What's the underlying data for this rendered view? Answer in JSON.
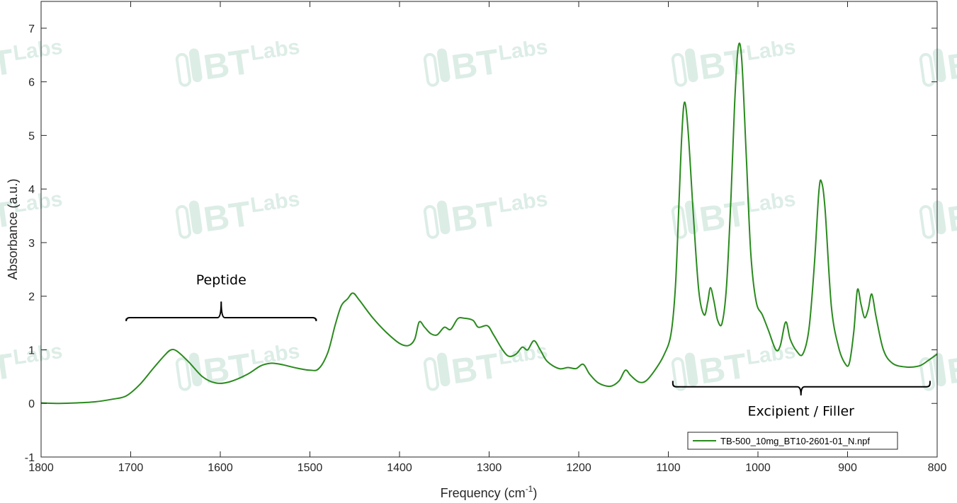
{
  "colors": {
    "series": "#2a8a1e",
    "axis": "#262626",
    "watermark": "#d7ebe2"
  },
  "watermark": {
    "text_bt": "BT",
    "text_labs": "Labs"
  },
  "chart_data": {
    "type": "line",
    "title": "",
    "xlabel": "Frequency (cm",
    "xlabel_sup": "-1",
    "xlabel_end": ")",
    "ylabel": "Absorbance (a.u.)",
    "xlim": [
      1800,
      800
    ],
    "ylim": [
      -1,
      7.5
    ],
    "x_reversed": true,
    "grid": false,
    "legend_position": "bottom-right",
    "xticks": [
      1800,
      1700,
      1600,
      1500,
      1400,
      1300,
      1200,
      1100,
      1000,
      900,
      800
    ],
    "xtick_labels": [
      "1800",
      "1700",
      "1600",
      "1500",
      "1400",
      "1300",
      "1200",
      "1100",
      "1000",
      "900",
      "800"
    ],
    "yticks": [
      -1,
      0,
      1,
      2,
      3,
      4,
      5,
      6,
      7
    ],
    "ytick_labels": [
      "-1",
      "0",
      "1",
      "2",
      "3",
      "4",
      "5",
      "6",
      "7"
    ],
    "series": [
      {
        "name": "TB-500_10mg_BT10-2601-01_N.npf",
        "points": [
          [
            1800,
            0.01
          ],
          [
            1780,
            0.0
          ],
          [
            1760,
            0.01
          ],
          [
            1740,
            0.03
          ],
          [
            1720,
            0.08
          ],
          [
            1705,
            0.14
          ],
          [
            1690,
            0.35
          ],
          [
            1675,
            0.65
          ],
          [
            1662,
            0.9
          ],
          [
            1655,
            1.0
          ],
          [
            1648,
            0.97
          ],
          [
            1635,
            0.77
          ],
          [
            1620,
            0.5
          ],
          [
            1605,
            0.38
          ],
          [
            1590,
            0.4
          ],
          [
            1570,
            0.54
          ],
          [
            1555,
            0.7
          ],
          [
            1543,
            0.75
          ],
          [
            1530,
            0.72
          ],
          [
            1515,
            0.66
          ],
          [
            1500,
            0.62
          ],
          [
            1490,
            0.65
          ],
          [
            1480,
            0.95
          ],
          [
            1472,
            1.45
          ],
          [
            1465,
            1.82
          ],
          [
            1458,
            1.95
          ],
          [
            1452,
            2.06
          ],
          [
            1445,
            1.93
          ],
          [
            1430,
            1.6
          ],
          [
            1415,
            1.33
          ],
          [
            1400,
            1.12
          ],
          [
            1390,
            1.08
          ],
          [
            1383,
            1.2
          ],
          [
            1378,
            1.52
          ],
          [
            1372,
            1.42
          ],
          [
            1365,
            1.3
          ],
          [
            1358,
            1.28
          ],
          [
            1350,
            1.42
          ],
          [
            1343,
            1.38
          ],
          [
            1335,
            1.58
          ],
          [
            1328,
            1.59
          ],
          [
            1318,
            1.55
          ],
          [
            1312,
            1.42
          ],
          [
            1302,
            1.45
          ],
          [
            1295,
            1.28
          ],
          [
            1285,
            1.0
          ],
          [
            1278,
            0.88
          ],
          [
            1270,
            0.92
          ],
          [
            1263,
            1.05
          ],
          [
            1257,
            1.0
          ],
          [
            1250,
            1.17
          ],
          [
            1243,
            1.0
          ],
          [
            1235,
            0.78
          ],
          [
            1222,
            0.65
          ],
          [
            1212,
            0.67
          ],
          [
            1203,
            0.65
          ],
          [
            1195,
            0.73
          ],
          [
            1188,
            0.55
          ],
          [
            1178,
            0.38
          ],
          [
            1165,
            0.32
          ],
          [
            1155,
            0.42
          ],
          [
            1148,
            0.62
          ],
          [
            1142,
            0.52
          ],
          [
            1133,
            0.4
          ],
          [
            1125,
            0.42
          ],
          [
            1115,
            0.62
          ],
          [
            1105,
            0.9
          ],
          [
            1097,
            1.3
          ],
          [
            1092,
            2.2
          ],
          [
            1088,
            3.8
          ],
          [
            1085,
            5.0
          ],
          [
            1082,
            5.62
          ],
          [
            1078,
            5.1
          ],
          [
            1072,
            3.5
          ],
          [
            1066,
            2.1
          ],
          [
            1060,
            1.65
          ],
          [
            1056,
            1.9
          ],
          [
            1053,
            2.16
          ],
          [
            1049,
            1.9
          ],
          [
            1045,
            1.55
          ],
          [
            1040,
            1.5
          ],
          [
            1035,
            2.2
          ],
          [
            1030,
            3.9
          ],
          [
            1026,
            5.6
          ],
          [
            1022,
            6.65
          ],
          [
            1018,
            6.4
          ],
          [
            1013,
            4.6
          ],
          [
            1008,
            2.8
          ],
          [
            1002,
            1.9
          ],
          [
            995,
            1.65
          ],
          [
            988,
            1.35
          ],
          [
            980,
            1.0
          ],
          [
            975,
            1.08
          ],
          [
            969,
            1.52
          ],
          [
            964,
            1.2
          ],
          [
            957,
            0.98
          ],
          [
            950,
            0.92
          ],
          [
            943,
            1.4
          ],
          [
            937,
            2.6
          ],
          [
            932,
            3.95
          ],
          [
            929,
            4.13
          ],
          [
            925,
            3.6
          ],
          [
            918,
            1.8
          ],
          [
            910,
            1.05
          ],
          [
            903,
            0.75
          ],
          [
            898,
            0.75
          ],
          [
            893,
            1.35
          ],
          [
            889,
            2.12
          ],
          [
            885,
            1.85
          ],
          [
            881,
            1.6
          ],
          [
            877,
            1.75
          ],
          [
            873,
            2.04
          ],
          [
            868,
            1.6
          ],
          [
            860,
            1.0
          ],
          [
            850,
            0.75
          ],
          [
            835,
            0.68
          ],
          [
            820,
            0.7
          ],
          [
            810,
            0.8
          ],
          [
            800,
            0.92
          ]
        ]
      }
    ],
    "annotations": [
      {
        "text": "Peptide",
        "x_from": 1705,
        "x_to": 1493,
        "x_tip": 1599,
        "y_arm": 1.58,
        "y_bar": 1.6,
        "y_tip": 1.9,
        "y_text": 2.22,
        "orientation": "up"
      },
      {
        "text": "Excipient / Filler",
        "x_from": 1095,
        "x_to": 808,
        "x_tip": 952,
        "y_arm": 0.42,
        "y_bar": 0.31,
        "y_tip": 0.15,
        "y_text": -0.23,
        "orientation": "down"
      }
    ]
  }
}
